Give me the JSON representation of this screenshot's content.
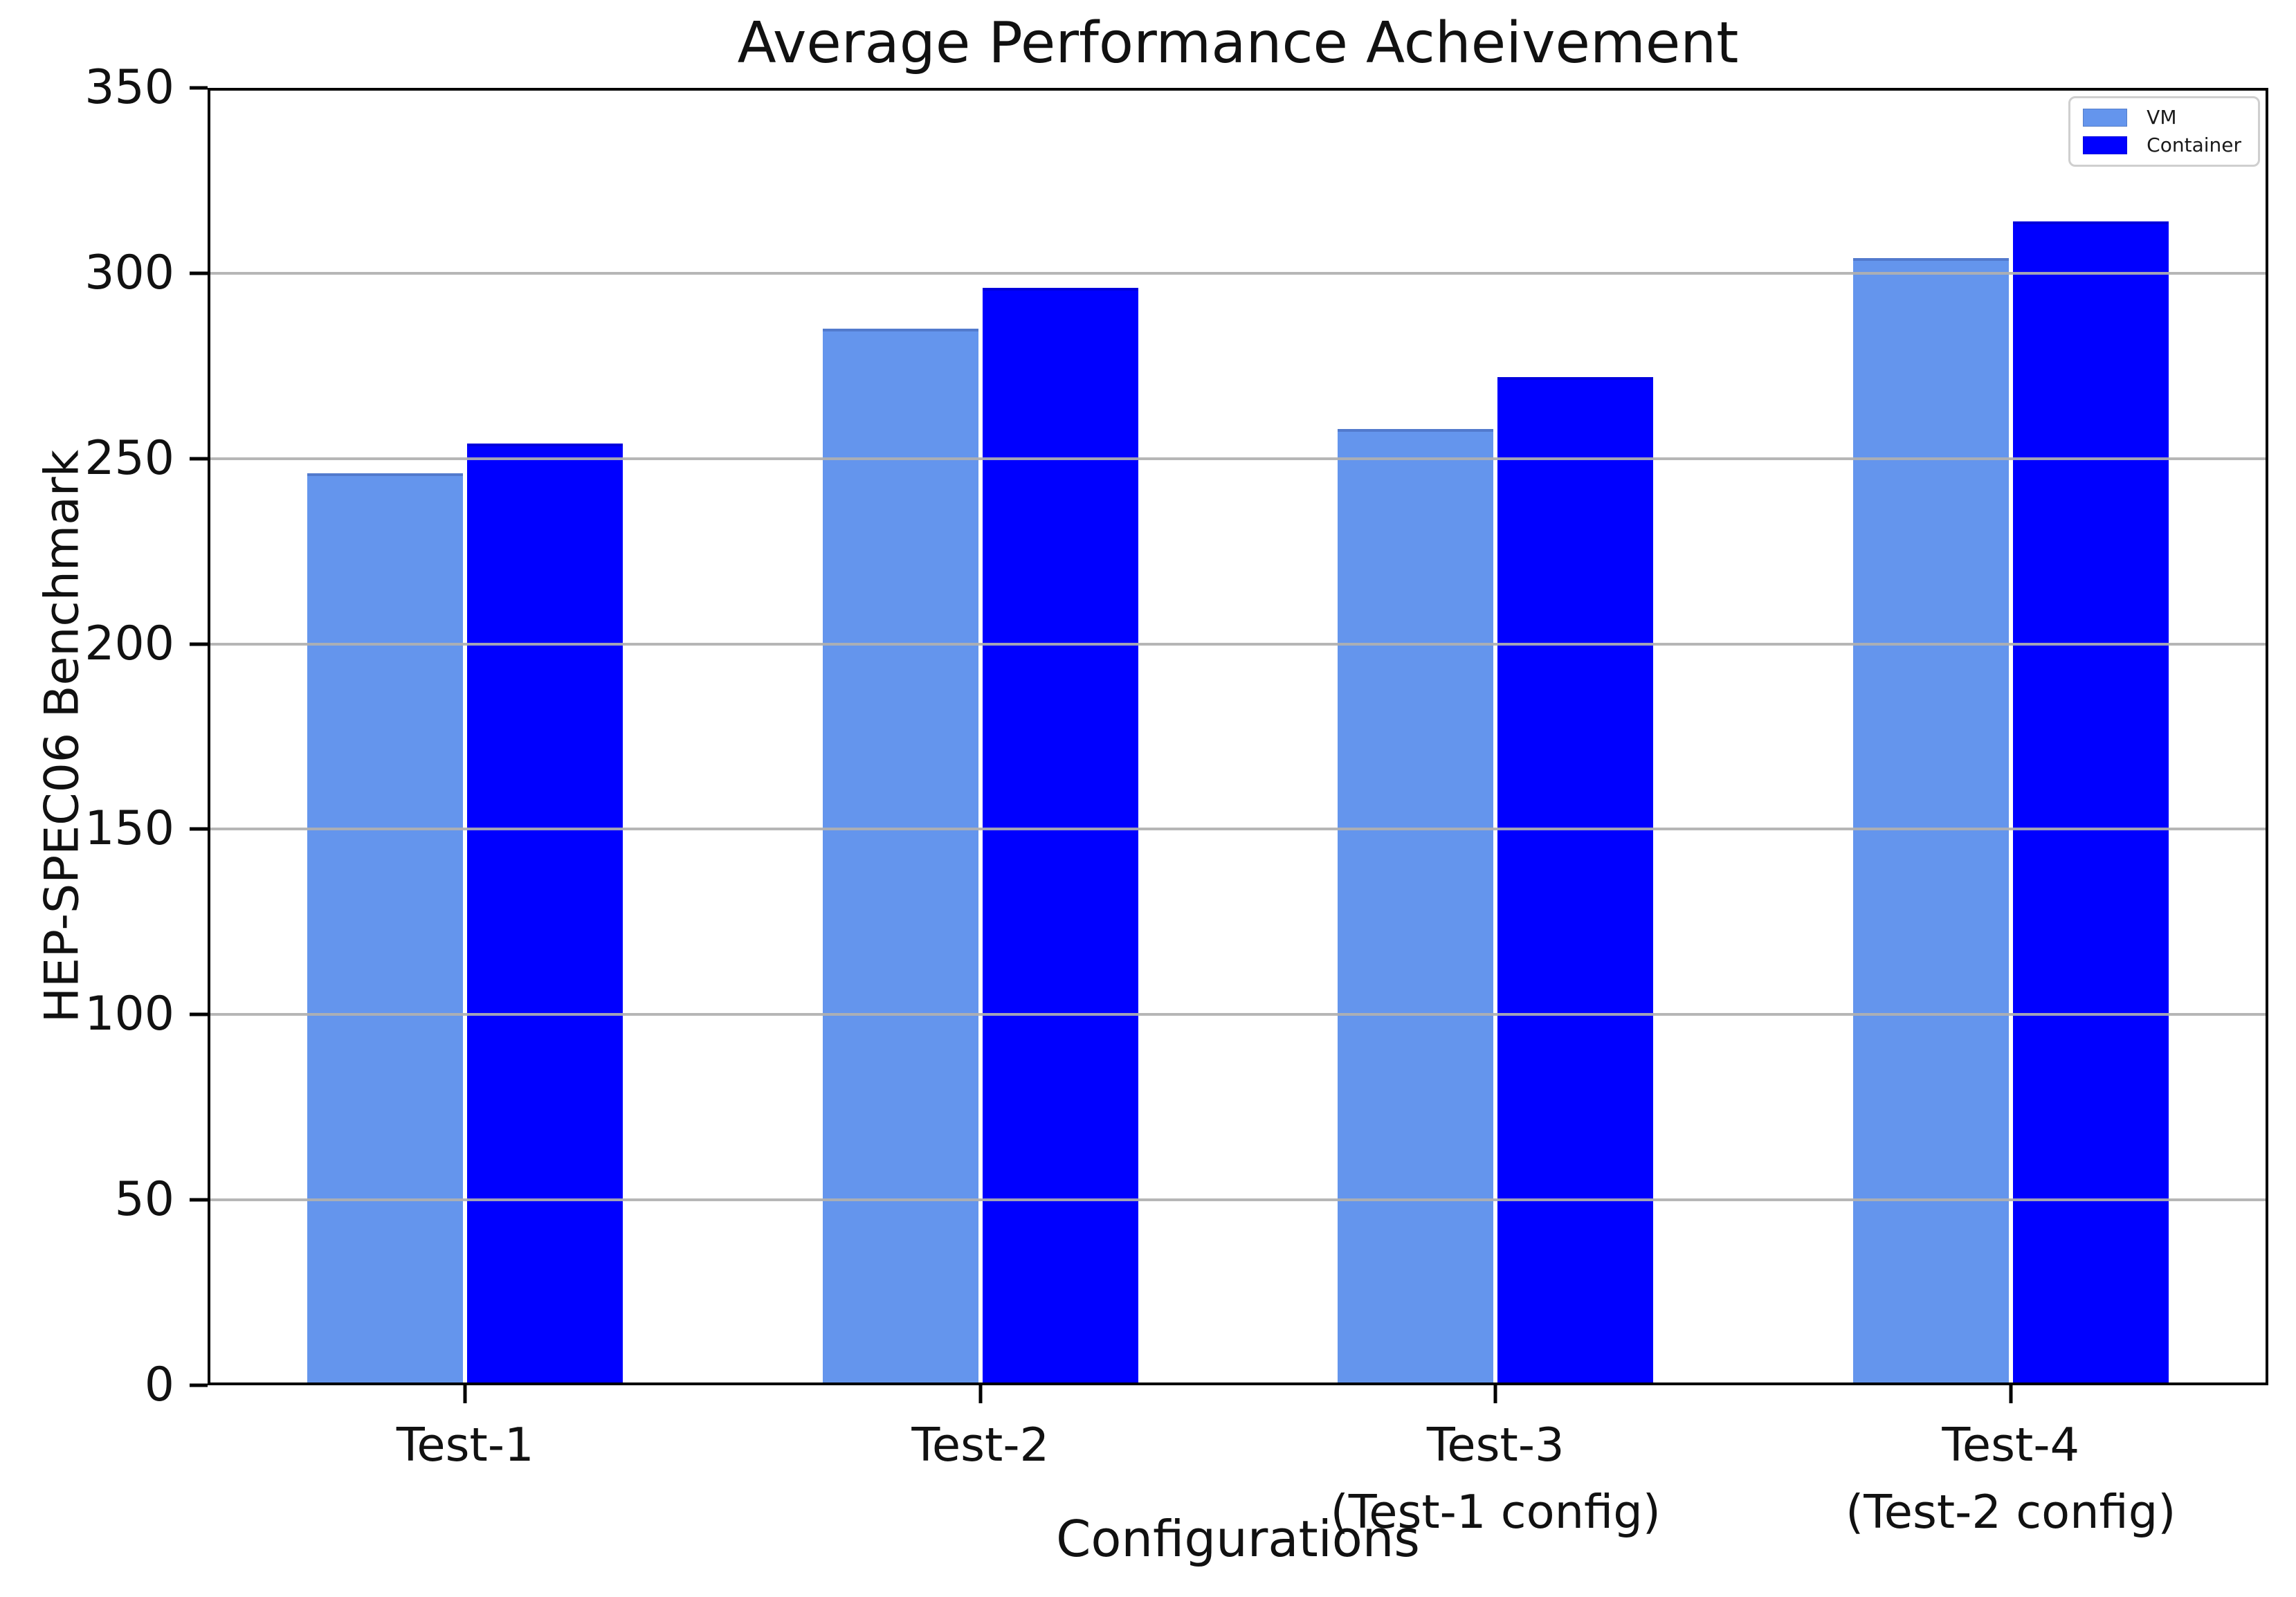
{
  "chart_data": {
    "type": "bar",
    "title": "Average Performance Acheivement",
    "xlabel": "Configurations",
    "ylabel": "HEP-SPEC06 Benchmark",
    "categories": [
      "Test-1",
      "Test-2",
      "Test-3 (Test-1 config)",
      "Test-4 (Test-2 config)"
    ],
    "category_lines": [
      [
        "Test-1"
      ],
      [
        "Test-2"
      ],
      [
        "Test-3",
        "(Test-1 config)"
      ],
      [
        "Test-4",
        "(Test-2 config)"
      ]
    ],
    "series": [
      {
        "name": "VM",
        "color": "#6495ED",
        "values": [
          246,
          285,
          258,
          304
        ]
      },
      {
        "name": "Container",
        "color": "#0000FF",
        "values": [
          254,
          296,
          272,
          314
        ]
      }
    ],
    "ylim": [
      0,
      350
    ],
    "yticks": [
      0,
      50,
      100,
      150,
      200,
      250,
      300,
      350
    ],
    "grid": true,
    "grid_color": "#b0b0b0",
    "legend_position": "upper right",
    "background": "#ffffff"
  }
}
